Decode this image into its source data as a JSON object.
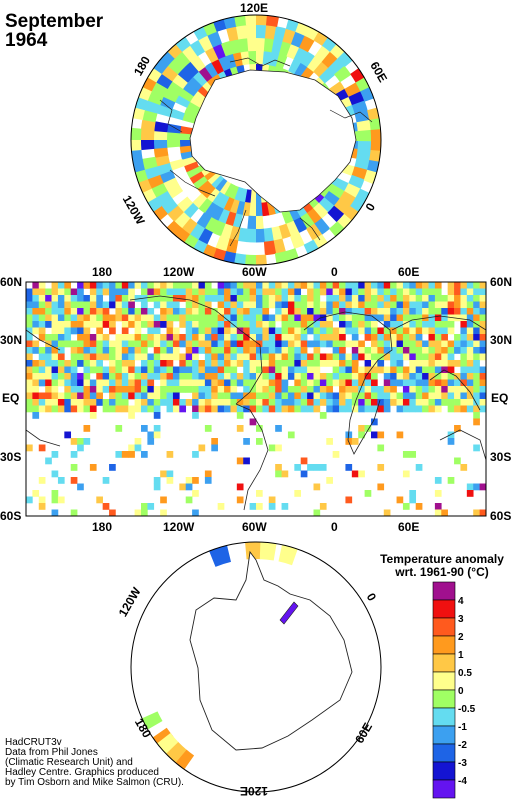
{
  "title": {
    "month": "September",
    "year": "1964"
  },
  "north_polar_labels": {
    "top": "120E",
    "right": "60E",
    "left": "180",
    "lower_left": "120W",
    "lower_right": "0"
  },
  "south_polar_labels": {
    "upper_left": "120W",
    "upper_right": "0",
    "lower_left": "180",
    "lower_right": "60E",
    "bottom": "120E"
  },
  "map_lon_labels": [
    "180",
    "120W",
    "60W",
    "0",
    "60E"
  ],
  "map_lat_labels": [
    "60N",
    "30N",
    "EQ",
    "30S",
    "60S"
  ],
  "legend": {
    "title_line1": "Temperature anomaly",
    "title_line2": "wrt. 1961-90  (°C)",
    "bins": [
      {
        "label": "4",
        "color": "#a0108e"
      },
      {
        "label": "3",
        "color": "#f01010"
      },
      {
        "label": "2",
        "color": "#ff5a1e"
      },
      {
        "label": "1",
        "color": "#ff9a1e"
      },
      {
        "label": "0.5",
        "color": "#ffc846"
      },
      {
        "label": "0",
        "color": "#ffff8c"
      },
      {
        "label": "-0.5",
        "color": "#a0ff64"
      },
      {
        "label": "-1",
        "color": "#64dcf0"
      },
      {
        "label": "-2",
        "color": "#3ca0f0"
      },
      {
        "label": "-3",
        "color": "#1e64e6"
      },
      {
        "label": "-4",
        "color": "#1414d2"
      },
      {
        "label": "",
        "color": "#6414f0"
      }
    ]
  },
  "credits": {
    "line1": "HadCRUT3v",
    "line2": "Data from Phil Jones",
    "line3": "(Climatic Research Unit) and",
    "line4": "Hadley Centre.  Graphics produced",
    "line5": "by Tim Osborn and Mike Salmon (CRU)."
  }
}
